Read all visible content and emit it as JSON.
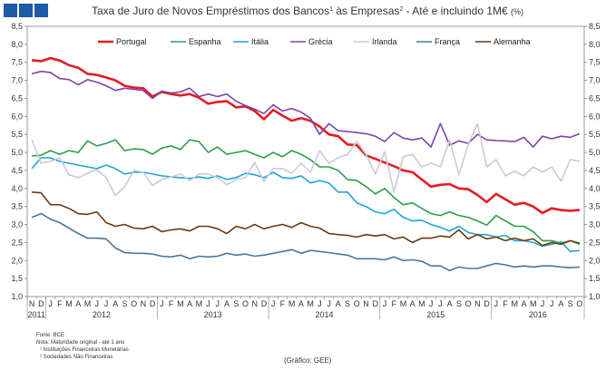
{
  "chart_data": {
    "type": "line",
    "title_main": "Taxa de Juro de Novos Empréstimos dos Bancos",
    "title_sup1": "1",
    "title_mid": " às Empresas",
    "title_sup2": "2",
    "title_tail": " - Até e incluindo 1M€ ",
    "title_unit": "(%)",
    "ylim": [
      1.0,
      8.5
    ],
    "yticks": [
      "1,0",
      "1,5",
      "2,0",
      "2,5",
      "3,0",
      "3,5",
      "4,0",
      "4,5",
      "5,0",
      "5,5",
      "6,0",
      "6,5",
      "7,0",
      "7,5",
      "8,0",
      "8,5"
    ],
    "month_labels": [
      "N",
      "D",
      "J",
      "F",
      "M",
      "A",
      "M",
      "J",
      "J",
      "A",
      "S",
      "O",
      "N",
      "D",
      "J",
      "F",
      "M",
      "A",
      "M",
      "J",
      "J",
      "A",
      "S",
      "O",
      "N",
      "D",
      "J",
      "F",
      "M",
      "A",
      "M",
      "J",
      "J",
      "A",
      "S",
      "O",
      "N",
      "D",
      "J",
      "F",
      "M",
      "A",
      "M",
      "J",
      "J",
      "A",
      "S",
      "O",
      "N",
      "D",
      "J",
      "F",
      "M",
      "A",
      "M",
      "J",
      "J",
      "A",
      "S",
      "O"
    ],
    "year_labels": [
      {
        "label": "2011",
        "center": 0.5
      },
      {
        "label": "2012",
        "center": 7.5
      },
      {
        "label": "2013",
        "center": 19.5
      },
      {
        "label": "2014",
        "center": 31.5
      },
      {
        "label": "2015",
        "center": 43.5
      },
      {
        "label": "2016",
        "center": 54.5
      }
    ],
    "year_boundaries": [
      1.5,
      13.5,
      25.5,
      37.5,
      49.5
    ],
    "series": [
      {
        "name": "Portugal",
        "color": "#e31b23",
        "width": 2.6,
        "values": [
          7.56,
          7.53,
          7.62,
          7.55,
          7.42,
          7.35,
          7.18,
          7.15,
          7.08,
          7.0,
          6.85,
          6.8,
          6.78,
          6.55,
          6.68,
          6.62,
          6.58,
          6.62,
          6.52,
          6.35,
          6.4,
          6.42,
          6.25,
          6.28,
          6.15,
          5.92,
          6.18,
          6.02,
          5.88,
          5.95,
          5.88,
          5.72,
          5.5,
          5.45,
          5.22,
          5.2,
          4.92,
          4.82,
          4.72,
          4.62,
          4.5,
          4.45,
          4.25,
          4.05,
          4.1,
          4.12,
          4.0,
          3.98,
          3.82,
          3.62,
          3.85,
          3.7,
          3.55,
          3.6,
          3.5,
          3.32,
          3.45,
          3.4,
          3.38,
          3.4
        ]
      },
      {
        "name": "Espanha",
        "color": "#2e9e48",
        "width": 1.6,
        "values": [
          4.9,
          4.92,
          5.05,
          4.95,
          5.05,
          5.0,
          5.32,
          5.18,
          5.25,
          5.35,
          5.05,
          5.1,
          5.08,
          4.95,
          5.12,
          5.18,
          5.08,
          5.35,
          5.3,
          5.0,
          5.15,
          4.95,
          5.0,
          5.05,
          4.95,
          4.85,
          5.0,
          4.88,
          5.05,
          4.95,
          4.8,
          4.6,
          4.6,
          4.5,
          4.25,
          4.22,
          4.05,
          3.85,
          4.0,
          3.75,
          3.55,
          3.6,
          3.45,
          3.3,
          3.25,
          3.35,
          3.25,
          3.2,
          3.1,
          2.98,
          3.25,
          3.1,
          2.95,
          2.95,
          2.8,
          2.55,
          2.55,
          2.48,
          2.55,
          2.45
        ]
      },
      {
        "name": "Itália",
        "color": "#22a3d6",
        "width": 1.6,
        "values": [
          4.55,
          4.85,
          4.85,
          4.75,
          4.7,
          4.65,
          4.6,
          4.55,
          4.65,
          4.55,
          4.4,
          4.45,
          4.45,
          4.4,
          4.35,
          4.32,
          4.3,
          4.28,
          4.32,
          4.28,
          4.35,
          4.25,
          4.3,
          4.42,
          4.38,
          4.3,
          4.45,
          4.3,
          4.28,
          4.35,
          4.15,
          4.22,
          4.15,
          3.9,
          3.9,
          3.6,
          3.5,
          3.35,
          3.3,
          3.42,
          3.2,
          3.1,
          3.12,
          3.0,
          2.92,
          2.82,
          2.95,
          2.78,
          2.72,
          2.72,
          2.65,
          2.7,
          2.55,
          2.55,
          2.5,
          2.4,
          2.45,
          2.52,
          2.25,
          2.28
        ]
      },
      {
        "name": "Grécia",
        "color": "#7a45a8",
        "width": 1.6,
        "values": [
          7.18,
          7.25,
          7.22,
          7.05,
          7.02,
          6.88,
          7.02,
          6.95,
          6.85,
          6.72,
          6.78,
          6.75,
          6.72,
          6.5,
          6.7,
          6.65,
          6.68,
          6.78,
          6.55,
          6.62,
          6.55,
          6.62,
          6.42,
          6.3,
          6.2,
          6.08,
          6.32,
          6.15,
          6.22,
          6.12,
          5.95,
          5.5,
          5.8,
          5.6,
          5.58,
          5.55,
          5.52,
          5.45,
          5.3,
          5.55,
          5.4,
          5.35,
          5.4,
          5.15,
          5.8,
          5.2,
          5.32,
          5.25,
          5.5,
          5.35,
          5.33,
          5.32,
          5.3,
          5.42,
          5.15,
          5.45,
          5.38,
          5.45,
          5.42,
          5.52
        ]
      },
      {
        "name": "Irlanda",
        "color": "#c9ccd4",
        "width": 1.6,
        "values": [
          5.35,
          4.7,
          4.75,
          4.85,
          4.38,
          4.3,
          4.42,
          4.52,
          4.3,
          3.8,
          4.05,
          4.5,
          4.45,
          4.08,
          4.25,
          4.32,
          4.4,
          4.22,
          4.4,
          4.4,
          4.3,
          4.1,
          4.25,
          4.3,
          4.72,
          4.2,
          4.55,
          4.55,
          4.42,
          4.7,
          4.45,
          5.05,
          4.7,
          4.85,
          4.95,
          5.3,
          4.95,
          4.4,
          5.02,
          3.9,
          4.88,
          4.95,
          4.6,
          4.7,
          4.6,
          5.35,
          4.38,
          5.22,
          5.8,
          4.6,
          4.8,
          4.35,
          4.48,
          4.35,
          4.6,
          4.45,
          4.6,
          4.2,
          4.8,
          4.75
        ]
      },
      {
        "name": "França",
        "color": "#4a7896",
        "width": 1.6,
        "values": [
          3.2,
          3.3,
          3.15,
          3.05,
          2.9,
          2.75,
          2.62,
          2.62,
          2.6,
          2.35,
          2.22,
          2.2,
          2.2,
          2.18,
          2.12,
          2.1,
          2.15,
          2.05,
          2.12,
          2.1,
          2.12,
          2.2,
          2.15,
          2.18,
          2.12,
          2.15,
          2.2,
          2.25,
          2.3,
          2.2,
          2.28,
          2.25,
          2.22,
          2.18,
          2.15,
          2.05,
          2.05,
          2.05,
          2.02,
          2.1,
          2.0,
          2.02,
          1.98,
          1.85,
          1.85,
          1.72,
          1.82,
          1.78,
          1.78,
          1.85,
          1.92,
          1.88,
          1.82,
          1.85,
          1.82,
          1.85,
          1.85,
          1.82,
          1.8,
          1.82
        ]
      },
      {
        "name": "Alemanha",
        "color": "#6b3a10",
        "width": 1.6,
        "values": [
          3.9,
          3.88,
          3.55,
          3.55,
          3.45,
          3.3,
          3.28,
          3.35,
          3.05,
          2.95,
          3.0,
          2.9,
          2.88,
          2.95,
          2.8,
          2.85,
          2.88,
          2.82,
          2.95,
          2.95,
          2.88,
          2.75,
          2.95,
          2.88,
          3.0,
          2.88,
          2.95,
          3.0,
          2.92,
          3.05,
          2.95,
          2.9,
          2.75,
          2.72,
          2.7,
          2.65,
          2.72,
          2.68,
          2.72,
          2.6,
          2.65,
          2.5,
          2.62,
          2.62,
          2.68,
          2.65,
          2.85,
          2.6,
          2.72,
          2.6,
          2.65,
          2.55,
          2.62,
          2.55,
          2.6,
          2.42,
          2.5,
          2.45,
          2.55,
          2.48
        ]
      }
    ]
  },
  "notes": {
    "source": "Fonte: BCE",
    "note": "Nota: Maturidade original - até 1 ano",
    "fn1": "¹ Instituições Financeiras Monetárias",
    "fn2": "² Sociedades Não Financeiras"
  },
  "credit": "(Gráfico: GEE)",
  "brand_colors": [
    "#1f5aa6",
    "#1f5aa6",
    "#1f5aa6"
  ]
}
